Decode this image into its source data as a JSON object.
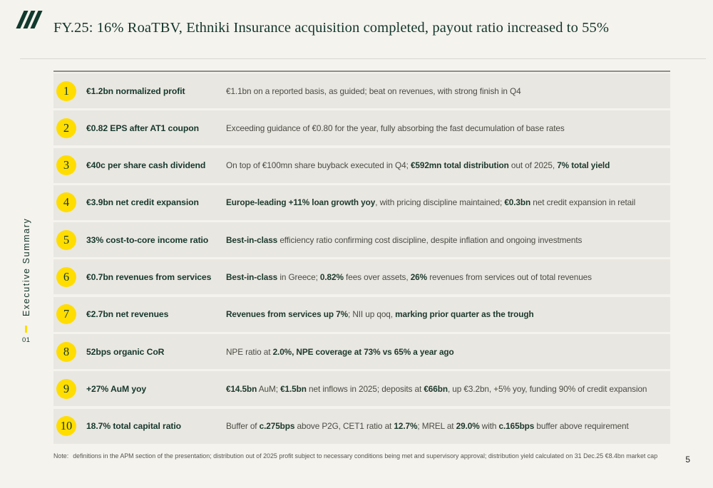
{
  "slide": {
    "title": "FY.25: 16% RoaTBV, Ethniki Insurance acquisition completed, payout ratio increased to 55%",
    "section_label": "Executive Summary",
    "section_number": "01",
    "note_label": "Note:",
    "note_text": "definitions in the APM section of the presentation; distribution out of 2025 profit subject to necessary conditions being met and supervisory approval; distribution yield calculated on 31 Dec.25 €8.4bn market cap",
    "page_number": "5"
  },
  "colors": {
    "brand_green": "#12362b",
    "brand_yellow": "#ffdd00",
    "row_bg": "#e9e7e1",
    "page_bg": "#f5f3ee"
  },
  "rows": [
    {
      "number": "1",
      "label": "€1.2bn normalized profit",
      "description": [
        {
          "text": "€1.1bn on a reported basis, as guided; beat on revenues, with strong finish in Q4",
          "bold": false
        }
      ]
    },
    {
      "number": "2",
      "label": "€0.82 EPS after AT1 coupon",
      "description": [
        {
          "text": "Exceeding guidance of €0.80 for the year, fully absorbing the fast decumulation of base rates",
          "bold": false
        }
      ]
    },
    {
      "number": "3",
      "label": "€40c per share cash dividend",
      "description": [
        {
          "text": "On top of €100mn share buyback executed in Q4; ",
          "bold": false
        },
        {
          "text": "€592mn total distribution",
          "bold": true
        },
        {
          "text": " out of 2025, ",
          "bold": false
        },
        {
          "text": "7% total yield",
          "bold": true
        }
      ]
    },
    {
      "number": "4",
      "label": "€3.9bn net credit expansion",
      "description": [
        {
          "text": "Europe-leading +11% loan growth yoy",
          "bold": true
        },
        {
          "text": ", with pricing discipline maintained; ",
          "bold": false
        },
        {
          "text": "€0.3bn",
          "bold": true
        },
        {
          "text": " net credit expansion in retail",
          "bold": false
        }
      ]
    },
    {
      "number": "5",
      "label": "33% cost-to-core income ratio",
      "description": [
        {
          "text": "Best-in-class",
          "bold": true
        },
        {
          "text": " efficiency ratio confirming cost discipline, despite inflation and ongoing investments",
          "bold": false
        }
      ]
    },
    {
      "number": "6",
      "label": "€0.7bn revenues from services",
      "description": [
        {
          "text": "Best-in-class",
          "bold": true
        },
        {
          "text": " in Greece; ",
          "bold": false
        },
        {
          "text": "0.82%",
          "bold": true
        },
        {
          "text": " fees over assets, ",
          "bold": false
        },
        {
          "text": "26%",
          "bold": true
        },
        {
          "text": " revenues from services out of total revenues",
          "bold": false
        }
      ]
    },
    {
      "number": "7",
      "label": "€2.7bn net revenues",
      "description": [
        {
          "text": "Revenues from services up 7%",
          "bold": true
        },
        {
          "text": "; NII up qoq, ",
          "bold": false
        },
        {
          "text": "marking prior quarter as the trough",
          "bold": true
        }
      ]
    },
    {
      "number": "8",
      "label": "52bps organic CoR",
      "description": [
        {
          "text": "NPE ratio at ",
          "bold": false
        },
        {
          "text": "2.0%, NPE coverage at 73% vs 65% a year ago",
          "bold": true
        }
      ]
    },
    {
      "number": "9",
      "label": "+27% AuM yoy",
      "description": [
        {
          "text": "€14.5bn",
          "bold": true
        },
        {
          "text": " AuM; ",
          "bold": false
        },
        {
          "text": "€1.5bn",
          "bold": true
        },
        {
          "text": " net inflows in 2025; deposits at ",
          "bold": false
        },
        {
          "text": "€66bn",
          "bold": true
        },
        {
          "text": ", up €3.2bn, +5% yoy, funding 90% of credit expansion",
          "bold": false
        }
      ]
    },
    {
      "number": "10",
      "label": "18.7% total capital ratio",
      "description": [
        {
          "text": "Buffer of ",
          "bold": false
        },
        {
          "text": "c.275bps",
          "bold": true
        },
        {
          "text": " above P2G, CET1 ratio at ",
          "bold": false
        },
        {
          "text": "12.7%",
          "bold": true
        },
        {
          "text": "; MREL at ",
          "bold": false
        },
        {
          "text": "29.0%",
          "bold": true
        },
        {
          "text": " with ",
          "bold": false
        },
        {
          "text": "c.165bps",
          "bold": true
        },
        {
          "text": " buffer above requirement",
          "bold": false
        }
      ]
    }
  ]
}
